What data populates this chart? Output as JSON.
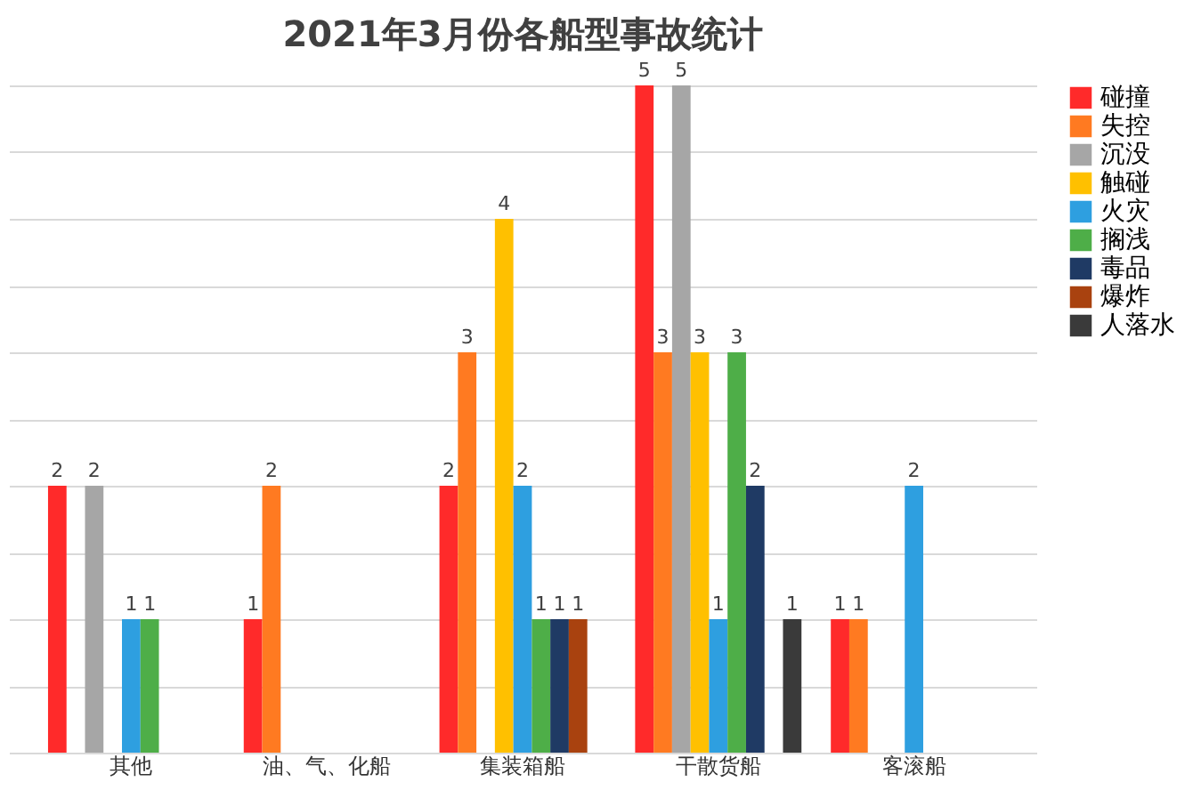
{
  "chart_data": {
    "type": "bar",
    "title": "2021年3月份各船型事故统计",
    "categories": [
      "其他",
      "油、气、化船",
      "集装箱船",
      "干散货船",
      "客滚船"
    ],
    "series": [
      {
        "name": "碰撞",
        "color": "#ff2a2a",
        "values": [
          2,
          1,
          2,
          5,
          1
        ]
      },
      {
        "name": "失控",
        "color": "#ff7a21",
        "values": [
          null,
          2,
          3,
          3,
          1
        ]
      },
      {
        "name": "沉没",
        "color": "#a6a6a6",
        "values": [
          2,
          null,
          null,
          5,
          null
        ]
      },
      {
        "name": "触碰",
        "color": "#ffc000",
        "values": [
          null,
          null,
          4,
          3,
          null
        ]
      },
      {
        "name": "火灾",
        "color": "#2e9fe0",
        "values": [
          1,
          null,
          2,
          1,
          2
        ]
      },
      {
        "name": "搁浅",
        "color": "#4eae48",
        "values": [
          1,
          null,
          1,
          3,
          null
        ]
      },
      {
        "name": "毒品",
        "color": "#1f3a64",
        "values": [
          null,
          null,
          1,
          2,
          null
        ]
      },
      {
        "name": "爆炸",
        "color": "#a9420f",
        "values": [
          null,
          null,
          1,
          null,
          null
        ]
      },
      {
        "name": "人落水",
        "color": "#3a3a3a",
        "values": [
          null,
          null,
          null,
          1,
          null
        ]
      }
    ],
    "ylim": [
      0,
      5
    ],
    "tick_labels": "x",
    "grid": "y",
    "legend": "right",
    "data_labels": true
  }
}
